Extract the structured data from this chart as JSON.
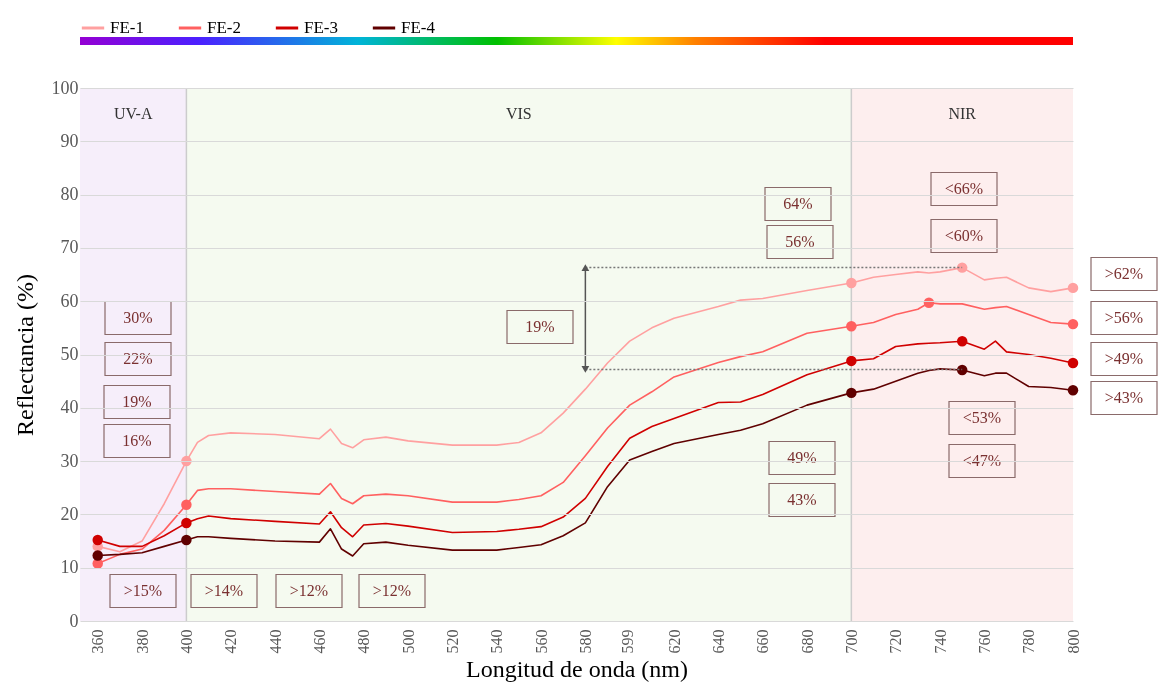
{
  "chart_data": {
    "type": "line",
    "xlabel": "Longitud de onda (nm)",
    "ylabel": "Reflectancia (%)",
    "xlim": [
      352,
      800
    ],
    "xticks": [
      360,
      380,
      400,
      420,
      440,
      460,
      480,
      500,
      520,
      540,
      560,
      580,
      599,
      620,
      640,
      660,
      680,
      700,
      720,
      740,
      760,
      780,
      800
    ],
    "ylim": [
      0,
      100
    ],
    "yticks": [
      0,
      10,
      20,
      30,
      40,
      50,
      60,
      70,
      80,
      90,
      100
    ],
    "grid": "y",
    "legend": "top left",
    "line_style": "solid",
    "x": [
      360,
      370,
      380,
      390,
      400,
      405,
      410,
      420,
      440,
      460,
      465,
      470,
      475,
      480,
      490,
      500,
      520,
      540,
      550,
      560,
      570,
      580,
      590,
      600,
      610,
      620,
      640,
      650,
      660,
      680,
      700,
      710,
      720,
      730,
      735,
      740,
      750,
      760,
      765,
      770,
      780,
      790,
      800
    ],
    "series": [
      {
        "name": "FE-1",
        "color": "#ffa0a0",
        "values": [
          14,
          13,
          15,
          22,
          30,
          33.5,
          34.8,
          35.3,
          35,
          34.2,
          36,
          33.3,
          32.5,
          34,
          34.5,
          33.8,
          33,
          33,
          33.5,
          35.3,
          39,
          43.5,
          48.4,
          52.5,
          55,
          56.8,
          59,
          60.2,
          60.5,
          62,
          63.4,
          64.5,
          65,
          65.5,
          65.3,
          65.5,
          66.3,
          64,
          64.3,
          64.5,
          62.5,
          61.8,
          62.5
        ]
      },
      {
        "name": "FE-2",
        "color": "#ff6060",
        "values": [
          10.8,
          12.5,
          13.5,
          17,
          21.8,
          24.5,
          24.8,
          24.8,
          24.3,
          23.8,
          25.8,
          23,
          22,
          23.5,
          23.8,
          23.5,
          22.3,
          22.3,
          22.8,
          23.5,
          26,
          31,
          36.2,
          40.5,
          43,
          45.8,
          48.5,
          49.6,
          50.5,
          54,
          55.3,
          56,
          57.5,
          58.5,
          59.7,
          59.5,
          59.5,
          58.5,
          58.8,
          59,
          57.5,
          56,
          55.7
        ]
      },
      {
        "name": "FE-3",
        "color": "#d00000",
        "values": [
          15.2,
          14,
          14,
          16,
          18.4,
          19.2,
          19.7,
          19.2,
          18.7,
          18.2,
          20.5,
          17.5,
          15.8,
          18,
          18.3,
          17.8,
          16.6,
          16.8,
          17.2,
          17.7,
          19.5,
          23,
          29,
          34.3,
          36.5,
          38,
          41,
          41.1,
          42.5,
          46.2,
          48.8,
          49.2,
          51.5,
          52,
          52.1,
          52.2,
          52.5,
          51,
          52.5,
          50.5,
          50,
          49.3,
          48.4
        ]
      },
      {
        "name": "FE-4",
        "color": "#600000",
        "values": [
          12.3,
          12.5,
          12.8,
          14,
          15.2,
          15.8,
          15.8,
          15.5,
          15,
          14.8,
          17.3,
          13.5,
          12.2,
          14.5,
          14.8,
          14.2,
          13.3,
          13.3,
          13.8,
          14.3,
          16,
          18.4,
          25.2,
          30.2,
          31.8,
          33.3,
          35,
          35.8,
          37,
          40.5,
          42.8,
          43.5,
          45,
          46.5,
          47,
          47.3,
          47.1,
          46,
          46.5,
          46.5,
          44,
          43.8,
          43.3
        ]
      },
      {
        "type": "scatter",
        "marker": "circle",
        "color": "#ffa0a0",
        "x": [
          360,
          400,
          700,
          750,
          800
        ],
        "values": [
          14,
          30,
          63.4,
          66.3,
          62.5
        ]
      },
      {
        "type": "scatter",
        "marker": "circle",
        "color": "#ff6060",
        "x": [
          360,
          400,
          700,
          735,
          800
        ],
        "values": [
          10.8,
          21.8,
          55.3,
          59.7,
          55.7
        ]
      },
      {
        "type": "scatter",
        "marker": "circle",
        "color": "#d00000",
        "x": [
          360,
          400,
          700,
          750,
          800
        ],
        "values": [
          15.2,
          18.4,
          48.8,
          52.5,
          48.4
        ]
      },
      {
        "type": "scatter",
        "marker": "circle",
        "color": "#600000",
        "x": [
          360,
          400,
          700,
          750,
          800
        ],
        "values": [
          12.3,
          15.2,
          42.8,
          47.1,
          43.3
        ]
      },
      {
        "type": "line",
        "color": "#777777",
        "line_style": "dotted",
        "x": [
          580,
          750
        ],
        "values": [
          66.3,
          66.3
        ]
      },
      {
        "type": "line",
        "color": "#777777",
        "line_style": "dotted",
        "x": [
          580,
          750
        ],
        "values": [
          47.2,
          47.2
        ]
      },
      {
        "type": "line",
        "color": "#555555",
        "line_style": "solid",
        "marker": "triangle",
        "x": [
          580,
          580
        ],
        "values": [
          47.2,
          66.3
        ]
      }
    ],
    "bands": [
      {
        "axis": "x",
        "from": 352,
        "to": 400,
        "label": "UV-A",
        "color": "#f6eefa"
      },
      {
        "axis": "x",
        "from": 400,
        "to": 700,
        "label": "VIS",
        "color": "#f5faf0"
      },
      {
        "axis": "x",
        "from": 700,
        "to": 800,
        "label": "NIR",
        "color": "#fdeeee"
      }
    ],
    "ref_lines": [
      {
        "axis": "x",
        "value": 400,
        "color": "#cccccc"
      },
      {
        "axis": "x",
        "value": 700,
        "color": "#cccccc"
      }
    ],
    "annotations": [
      "30%",
      "22%",
      "19%",
      "16%",
      ">15%",
      ">14%",
      ">12%",
      ">12%",
      "19%",
      "64%",
      "56%",
      "49%",
      "43%",
      "<66%",
      "<60%",
      "<53%",
      "<47%",
      ">62%",
      ">56%",
      ">49%",
      ">43%"
    ]
  }
}
